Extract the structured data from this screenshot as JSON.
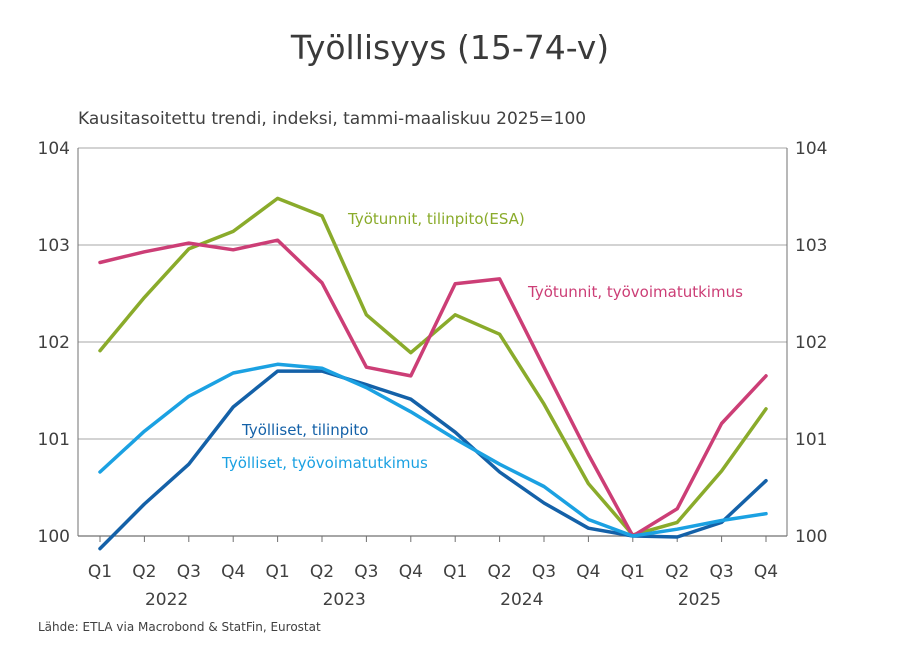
{
  "chart_data": {
    "type": "line",
    "title": "Työllisyys (15-74-v)",
    "subtitle": "Kausitasoitettu trendi, indeksi, tammi-maaliskuu 2025=100",
    "source": "Lähde: ETLA via Macrobond & StatFin, Eurostat",
    "categories": [
      "Q1",
      "Q2",
      "Q3",
      "Q4",
      "Q1",
      "Q2",
      "Q3",
      "Q4",
      "Q1",
      "Q2",
      "Q3",
      "Q4",
      "Q1",
      "Q2",
      "Q3",
      "Q4"
    ],
    "years": [
      "2022",
      "2023",
      "2024",
      "2025"
    ],
    "ylim": [
      100,
      104
    ],
    "yticks": [
      "100",
      "101",
      "102",
      "103",
      "104"
    ],
    "grid": true,
    "series": [
      {
        "name": "Työtunnit, tilinpito(ESA)",
        "color": "#8aab2b",
        "values": [
          101.91,
          102.46,
          102.96,
          103.14,
          103.48,
          103.3,
          102.28,
          101.89,
          102.28,
          102.08,
          101.36,
          100.54,
          100.01,
          100.14,
          100.67,
          101.31
        ]
      },
      {
        "name": "Työtunnit, työvoimatutkimus",
        "color": "#cc3e76",
        "values": [
          102.82,
          102.93,
          103.02,
          102.95,
          103.05,
          102.61,
          101.74,
          101.65,
          102.6,
          102.65,
          101.74,
          100.84,
          100.0,
          100.28,
          101.16,
          101.65
        ]
      },
      {
        "name": "Työlliset, tilinpito",
        "color": "#1461a8",
        "values": [
          99.87,
          100.33,
          100.74,
          101.33,
          101.7,
          101.7,
          101.56,
          101.41,
          101.07,
          100.66,
          100.34,
          100.08,
          100.0,
          99.99,
          100.14,
          100.57
        ]
      },
      {
        "name": "Työlliset, työvoimatutkimus",
        "color": "#1ba1e2",
        "values": [
          100.66,
          101.08,
          101.44,
          101.68,
          101.77,
          101.73,
          101.53,
          101.28,
          101.0,
          100.74,
          100.51,
          100.17,
          100.0,
          100.07,
          100.16,
          100.23
        ]
      }
    ]
  }
}
